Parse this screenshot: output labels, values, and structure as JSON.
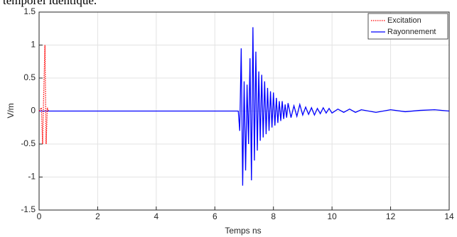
{
  "caption": "temporel identique.",
  "chart_data": {
    "type": "line",
    "xlabel": "Temps ns",
    "ylabel": "V/m",
    "xlim": [
      0,
      14
    ],
    "xticks": [
      0,
      2,
      4,
      6,
      8,
      10,
      12,
      14
    ],
    "ylim": [
      -1.5,
      1.5
    ],
    "yticks": [
      -1.5,
      -1,
      -0.5,
      0,
      0.5,
      1,
      1.5
    ],
    "grid": true,
    "legend": "upper right",
    "series": [
      {
        "name": "Excitation",
        "color": "#ff0000",
        "dash": "dotted",
        "x": [
          0,
          0.08,
          0.12,
          0.16,
          0.2,
          0.24,
          0.28,
          0.32
        ],
        "values": [
          0,
          0.05,
          -0.5,
          0.3,
          1,
          -0.5,
          0.05,
          0
        ]
      },
      {
        "name": "Rayonnement",
        "color": "#0000ff",
        "dash": "solid",
        "x": [
          0,
          6.8,
          6.85,
          6.9,
          6.95,
          7.0,
          7.05,
          7.1,
          7.15,
          7.2,
          7.25,
          7.3,
          7.35,
          7.4,
          7.45,
          7.5,
          7.55,
          7.6,
          7.65,
          7.7,
          7.75,
          7.8,
          7.85,
          7.9,
          7.95,
          8.0,
          8.05,
          8.1,
          8.15,
          8.2,
          8.25,
          8.3,
          8.35,
          8.4,
          8.45,
          8.5,
          8.6,
          8.7,
          8.8,
          8.9,
          9.0,
          9.1,
          9.2,
          9.3,
          9.4,
          9.5,
          9.6,
          9.7,
          9.8,
          9.9,
          10.0,
          10.2,
          10.4,
          10.6,
          10.8,
          11.0,
          11.5,
          12,
          12.5,
          13,
          13.5,
          14
        ],
        "values": [
          0,
          0,
          -0.3,
          0.95,
          -1.13,
          0.45,
          -0.9,
          0.4,
          -0.5,
          0.8,
          -1.05,
          1.27,
          -0.75,
          0.9,
          -0.6,
          0.6,
          -0.45,
          0.55,
          -0.4,
          0.45,
          -0.35,
          0.35,
          -0.3,
          0.3,
          -0.25,
          0.28,
          -0.22,
          0.2,
          -0.18,
          0.15,
          -0.15,
          0.15,
          -0.12,
          0.1,
          -0.1,
          0.12,
          -0.1,
          0.08,
          -0.08,
          0.1,
          -0.06,
          0.06,
          -0.05,
          0.05,
          -0.06,
          0.04,
          -0.04,
          0.05,
          -0.03,
          0.04,
          -0.03,
          0.03,
          -0.02,
          0.03,
          -0.02,
          0.02,
          -0.02,
          0.02,
          -0.01,
          0.01,
          0.02,
          0
        ]
      }
    ]
  }
}
